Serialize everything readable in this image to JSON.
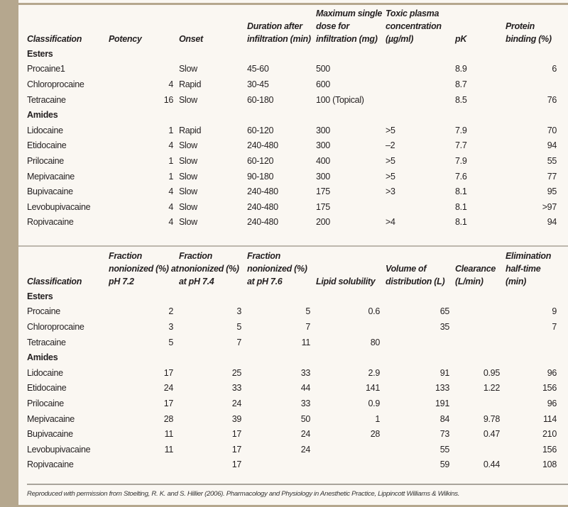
{
  "table1": {
    "headers": [
      "Classification",
      "Potency",
      "Onset",
      "Duration after infiltration (min)",
      "Maximum single dose for infiltration (mg)",
      "Toxic plasma concentration (µg/ml)",
      "pK",
      "Protein binding (%)"
    ],
    "rows": [
      {
        "group": "Esters"
      },
      {
        "cells": [
          "Procaine1",
          "",
          "Slow",
          "45-60",
          "500",
          "",
          "8.9",
          "6"
        ]
      },
      {
        "cells": [
          "Chloroprocaine",
          "4",
          "Rapid",
          "30-45",
          "600",
          "",
          "8.7",
          ""
        ]
      },
      {
        "cells": [
          "Tetracaine",
          "16",
          "Slow",
          "60-180",
          "100 (Topical)",
          "",
          "8.5",
          "76"
        ]
      },
      {
        "group": "Amides"
      },
      {
        "cells": [
          "Lidocaine",
          "1",
          "Rapid",
          "60-120",
          "300",
          ">5",
          "7.9",
          "70"
        ]
      },
      {
        "cells": [
          "Etidocaine",
          "4",
          "Slow",
          "240-480",
          "300",
          "–2",
          "7.7",
          "94"
        ]
      },
      {
        "cells": [
          "Prilocaine",
          "1",
          "Slow",
          "60-120",
          "400",
          ">5",
          "7.9",
          "55"
        ]
      },
      {
        "cells": [
          "Mepivacaine",
          "1",
          "Slow",
          "90-180",
          "300",
          ">5",
          "7.6",
          "77"
        ]
      },
      {
        "cells": [
          "Bupivacaine",
          "4",
          "Slow",
          "240-480",
          "175",
          ">3",
          "8.1",
          "95"
        ]
      },
      {
        "cells": [
          "Levobupivacaine",
          "4",
          "Slow",
          "240-480",
          "175",
          "",
          "8.1",
          ">97"
        ]
      },
      {
        "cells": [
          "Ropivacaine",
          "4",
          "Slow",
          "240-480",
          "200",
          ">4",
          "8.1",
          "94"
        ]
      }
    ]
  },
  "table2": {
    "headers": [
      "Classification",
      "Fraction nonionized (%) at pH 7.2",
      "Fraction nonionized (%) at pH 7.4",
      "Fraction nonionized (%) at pH 7.6",
      "Lipid solubility",
      "Volume of distribution (L)",
      "Clearance (L/min)",
      "Elimination half-time (min)"
    ],
    "rows": [
      {
        "group": "Esters"
      },
      {
        "cells": [
          "Procaine",
          "2",
          "3",
          "5",
          "0.6",
          "65",
          "",
          "9"
        ]
      },
      {
        "cells": [
          "Chloroprocaine",
          "3",
          "5",
          "7",
          "",
          "35",
          "",
          "7"
        ]
      },
      {
        "cells": [
          "Tetracaine",
          "5",
          "7",
          "11",
          "80",
          "",
          "",
          ""
        ]
      },
      {
        "group": "Amides"
      },
      {
        "cells": [
          "Lidocaine",
          "17",
          "25",
          "33",
          "2.9",
          "91",
          "0.95",
          "96"
        ]
      },
      {
        "cells": [
          "Etidocaine",
          "24",
          "33",
          "44",
          "141",
          "133",
          "1.22",
          "156"
        ]
      },
      {
        "cells": [
          "Prilocaine",
          "17",
          "24",
          "33",
          "0.9",
          "191",
          "",
          "96"
        ]
      },
      {
        "cells": [
          "Mepivacaine",
          "28",
          "39",
          "50",
          "1",
          "84",
          "9.78",
          "114"
        ]
      },
      {
        "cells": [
          "Bupivacaine",
          "11",
          "17",
          "24",
          "28",
          "73",
          "0.47",
          "210"
        ]
      },
      {
        "cells": [
          "Levobupivacaine",
          "11",
          "17",
          "24",
          "",
          "55",
          "",
          "156"
        ]
      },
      {
        "cells": [
          "Ropivacaine",
          "",
          "17",
          "",
          "",
          "59",
          "0.44",
          "108"
        ]
      }
    ]
  },
  "footnote": "Reproduced with permission from Stoelting, R. K. and S. Hillier (2006). Pharmacology and Physiology in Anesthetic Practice, Lippincott Williams & Wilkins."
}
